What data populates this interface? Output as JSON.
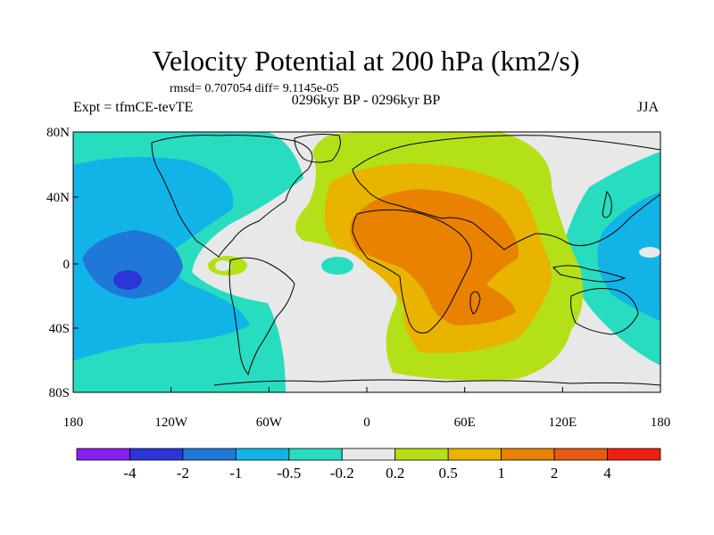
{
  "title": "Velocity Potential at 200 hPa (km2/s)",
  "stats": "rmsd= 0.707054 diff= 9.1145e-05",
  "period": "0296kyr BP - 0296kyr BP",
  "experiment": "Expt = tfmCE-tevTE",
  "season": "JJA",
  "lon_ticks": [
    "180",
    "120W",
    "60W",
    "0",
    "60E",
    "120E",
    "180"
  ],
  "lat_ticks": [
    "80N",
    "40N",
    "0",
    "40S",
    "80S"
  ],
  "colorbar": {
    "colors": [
      "#8a1ef0",
      "#2b35d8",
      "#1f78d8",
      "#12b4e8",
      "#28dcc0",
      "#e8e8e8",
      "#b4e018",
      "#e8b400",
      "#e88200",
      "#e85a10",
      "#f01e10"
    ],
    "labels": [
      "-4",
      "-2",
      "-1",
      "-0.5",
      "-0.2",
      "0.2",
      "0.5",
      "1",
      "2",
      "4"
    ]
  },
  "colors": {
    "land_line": "#000000",
    "neutral": "#e8e8e8"
  }
}
